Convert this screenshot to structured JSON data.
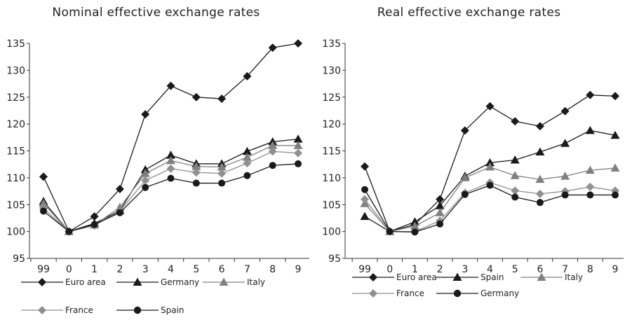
{
  "chart_data": [
    {
      "type": "line",
      "title": "Nominal effective exchange rates",
      "categories": [
        "99",
        "0",
        "1",
        "2",
        "3",
        "4",
        "5",
        "6",
        "7",
        "8",
        "9"
      ],
      "ylim": [
        95,
        135
      ],
      "yticks": [
        95,
        100,
        105,
        110,
        115,
        120,
        125,
        130,
        135
      ],
      "grid": false,
      "legend_position": "bottom",
      "series": [
        {
          "name": "Euro area",
          "marker": "diamond",
          "color": "#1a1a1a",
          "values": [
            110.2,
            100,
            102.8,
            107.9,
            121.8,
            127.1,
            125.0,
            124.7,
            128.9,
            134.2,
            135.0
          ]
        },
        {
          "name": "Germany",
          "marker": "triangle",
          "color": "#1a1a1a",
          "values": [
            105.6,
            100,
            101.5,
            103.9,
            111.5,
            114.2,
            112.6,
            112.6,
            114.9,
            116.7,
            117.2
          ]
        },
        {
          "name": "Italy",
          "marker": "triangle",
          "color": "#808080",
          "values": [
            105.2,
            100,
            101.2,
            104.5,
            110.8,
            113.2,
            112.1,
            112.0,
            113.8,
            116.0,
            116.0
          ]
        },
        {
          "name": "France",
          "marker": "diamond",
          "color": "#909090",
          "values": [
            104.3,
            100,
            101.1,
            103.8,
            109.5,
            111.7,
            111.0,
            110.8,
            112.7,
            114.9,
            114.6
          ]
        },
        {
          "name": "Spain",
          "marker": "circle",
          "color": "#1a1a1a",
          "values": [
            103.8,
            100,
            101.3,
            103.5,
            108.2,
            109.9,
            109.0,
            109.0,
            110.4,
            112.3,
            112.6
          ]
        }
      ]
    },
    {
      "type": "line",
      "title": "Real effective exchange rates",
      "categories": [
        "99",
        "0",
        "1",
        "2",
        "3",
        "4",
        "5",
        "6",
        "7",
        "8",
        "9"
      ],
      "ylim": [
        95,
        135
      ],
      "yticks": [
        95,
        100,
        105,
        110,
        115,
        120,
        125,
        130,
        135
      ],
      "grid": false,
      "legend_position": "bottom",
      "series": [
        {
          "name": "Euro area",
          "marker": "diamond",
          "color": "#1a1a1a",
          "values": [
            112.1,
            100,
            101.3,
            106.0,
            118.8,
            123.3,
            120.5,
            119.6,
            122.4,
            125.4,
            125.2
          ]
        },
        {
          "name": "Spain",
          "marker": "triangle",
          "color": "#1a1a1a",
          "values": [
            102.8,
            100,
            101.8,
            104.8,
            110.3,
            112.8,
            113.3,
            114.8,
            116.4,
            118.8,
            117.9
          ]
        },
        {
          "name": "Italy",
          "marker": "triangle",
          "color": "#808080",
          "values": [
            105.2,
            100,
            101.0,
            103.5,
            110.0,
            112.0,
            110.4,
            109.7,
            110.3,
            111.4,
            111.8
          ]
        },
        {
          "name": "France",
          "marker": "diamond",
          "color": "#909090",
          "values": [
            106.0,
            100,
            100.0,
            102.0,
            107.2,
            109.1,
            107.6,
            107.0,
            107.5,
            108.3,
            107.6
          ]
        },
        {
          "name": "Germany",
          "marker": "circle",
          "color": "#1a1a1a",
          "values": [
            107.8,
            100,
            99.9,
            101.4,
            106.9,
            108.6,
            106.4,
            105.4,
            106.8,
            106.8,
            106.8
          ]
        }
      ]
    }
  ]
}
